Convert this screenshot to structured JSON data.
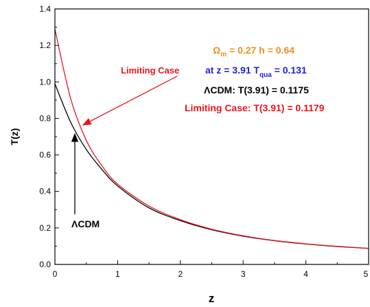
{
  "chart_data": {
    "type": "line",
    "xlabel": "z",
    "ylabel": "T(z)",
    "xlim": [
      0,
      5
    ],
    "ylim": [
      0.0,
      1.4
    ],
    "x_ticks": [
      "0",
      "1",
      "2",
      "3",
      "4",
      "5"
    ],
    "y_ticks": [
      "0.0",
      "0.2",
      "0.4",
      "0.6",
      "0.8",
      "1.0",
      "1.2",
      "1.4"
    ],
    "grid": false,
    "series": [
      {
        "color": "#000000",
        "x": [
          0,
          0.25,
          0.5,
          0.75,
          1.0,
          1.5,
          2.0,
          2.5,
          3.0,
          3.5,
          4.0,
          4.5,
          5.0
        ],
        "values": [
          0.99,
          0.78,
          0.63,
          0.52,
          0.43,
          0.31,
          0.24,
          0.19,
          0.155,
          0.13,
          0.112,
          0.098,
          0.088
        ]
      },
      {
        "color": "#e8141c",
        "x": [
          0,
          0.25,
          0.5,
          0.75,
          1.0,
          1.5,
          2.0,
          2.5,
          3.0,
          3.5,
          4.0,
          4.5,
          5.0
        ],
        "values": [
          1.29,
          0.91,
          0.68,
          0.54,
          0.44,
          0.32,
          0.245,
          0.193,
          0.157,
          0.131,
          0.113,
          0.099,
          0.088
        ]
      }
    ],
    "annotations": {
      "params": {
        "omega": "Ω",
        "omega_sub": "m",
        "text": " = 0.27   h = 0.64",
        "color": "#f28c1e"
      },
      "zline": {
        "prefix": "at z = 3.91  T",
        "sub": "qua",
        "suffix": " = 0.131",
        "color": "#1f1fd6"
      },
      "lcdm_result": {
        "text": "ΛCDM: T(3.91) = 0.1175",
        "color": "#000000"
      },
      "limiting_result": {
        "text": "Limiting Case: T(3.91) = 0.1179",
        "color": "#e8141c"
      },
      "limiting_label": {
        "text": "Limiting Case",
        "color": "#e8141c"
      },
      "lcdm_label": {
        "text": "ΛCDM",
        "color": "#000000"
      }
    }
  }
}
